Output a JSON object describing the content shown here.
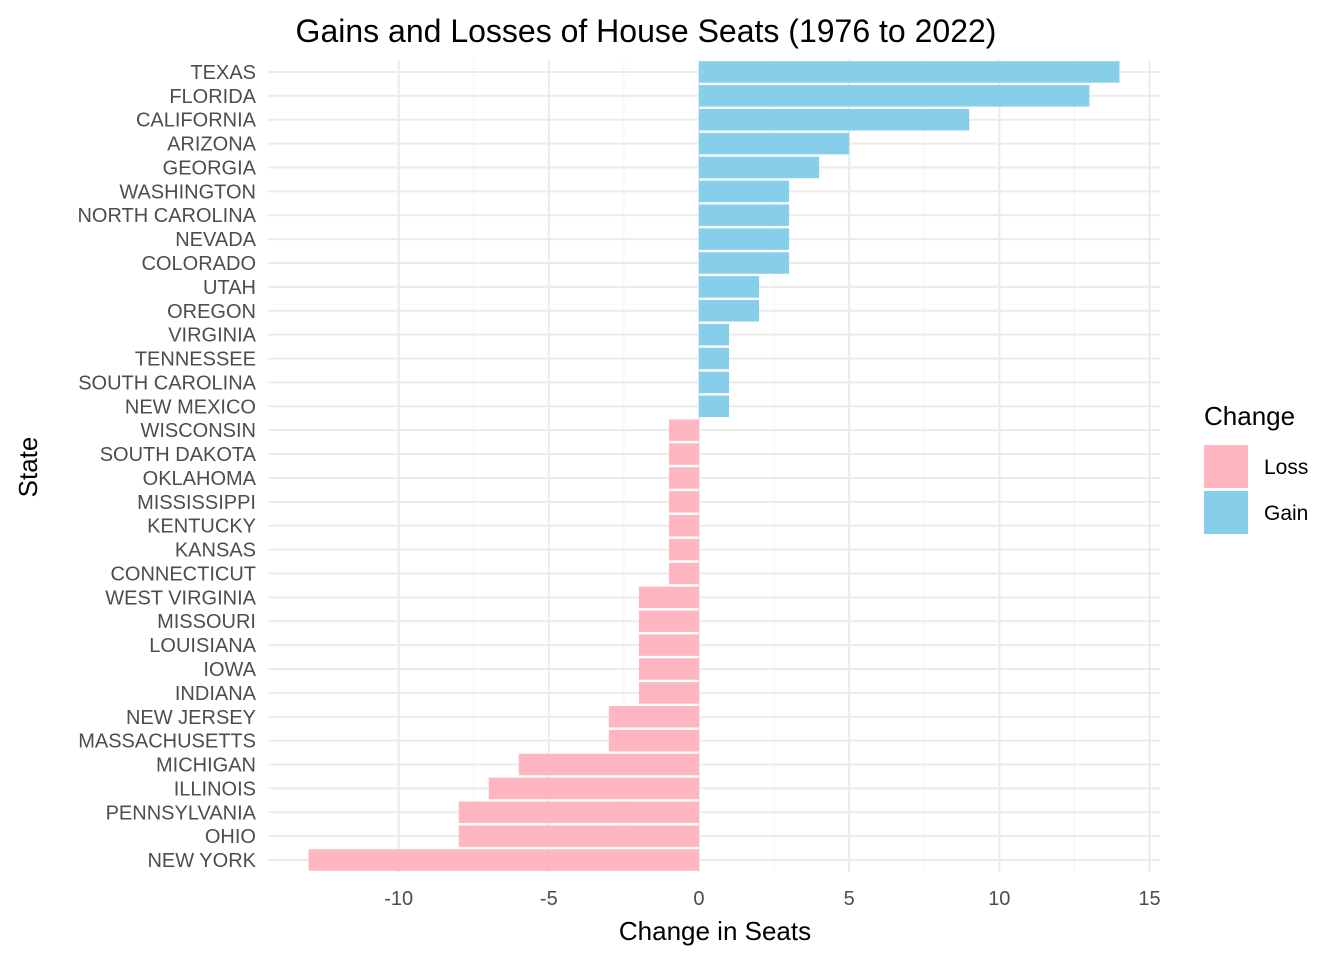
{
  "colors": {
    "loss": "#ffb6c1",
    "gain": "#87ceeb",
    "grid_major": "#ebebeb",
    "grid_minor": "#f4f4f4"
  },
  "chart_data": {
    "type": "bar",
    "orientation": "horizontal",
    "title": "Gains and Losses of House Seats (1976 to 2022)",
    "xlabel": "Change in Seats",
    "ylabel": "State",
    "xlim": [
      -14.35,
      15.35
    ],
    "xticks": [
      -10,
      -5,
      0,
      5,
      10,
      15
    ],
    "xtick_labels": [
      "-10",
      "-5",
      "0",
      "5",
      "10",
      "15"
    ],
    "grid": true,
    "legend": {
      "title": "Change",
      "position": "right",
      "entries": [
        {
          "label": "Loss",
          "color": "#ffb6c1"
        },
        {
          "label": "Gain",
          "color": "#87ceeb"
        }
      ]
    },
    "categories": [
      "TEXAS",
      "FLORIDA",
      "CALIFORNIA",
      "ARIZONA",
      "GEORGIA",
      "WASHINGTON",
      "NORTH CAROLINA",
      "NEVADA",
      "COLORADO",
      "UTAH",
      "OREGON",
      "VIRGINIA",
      "TENNESSEE",
      "SOUTH CAROLINA",
      "NEW MEXICO",
      "WISCONSIN",
      "SOUTH DAKOTA",
      "OKLAHOMA",
      "MISSISSIPPI",
      "KENTUCKY",
      "KANSAS",
      "CONNECTICUT",
      "WEST VIRGINIA",
      "MISSOURI",
      "LOUISIANA",
      "IOWA",
      "INDIANA",
      "NEW JERSEY",
      "MASSACHUSETTS",
      "MICHIGAN",
      "ILLINOIS",
      "PENNSYLVANIA",
      "OHIO",
      "NEW YORK"
    ],
    "values": [
      14,
      13,
      9,
      5,
      4,
      3,
      3,
      3,
      3,
      2,
      2,
      1,
      1,
      1,
      1,
      -1,
      -1,
      -1,
      -1,
      -1,
      -1,
      -1,
      -2,
      -2,
      -2,
      -2,
      -2,
      -3,
      -3,
      -6,
      -7,
      -8,
      -8,
      -13
    ]
  }
}
